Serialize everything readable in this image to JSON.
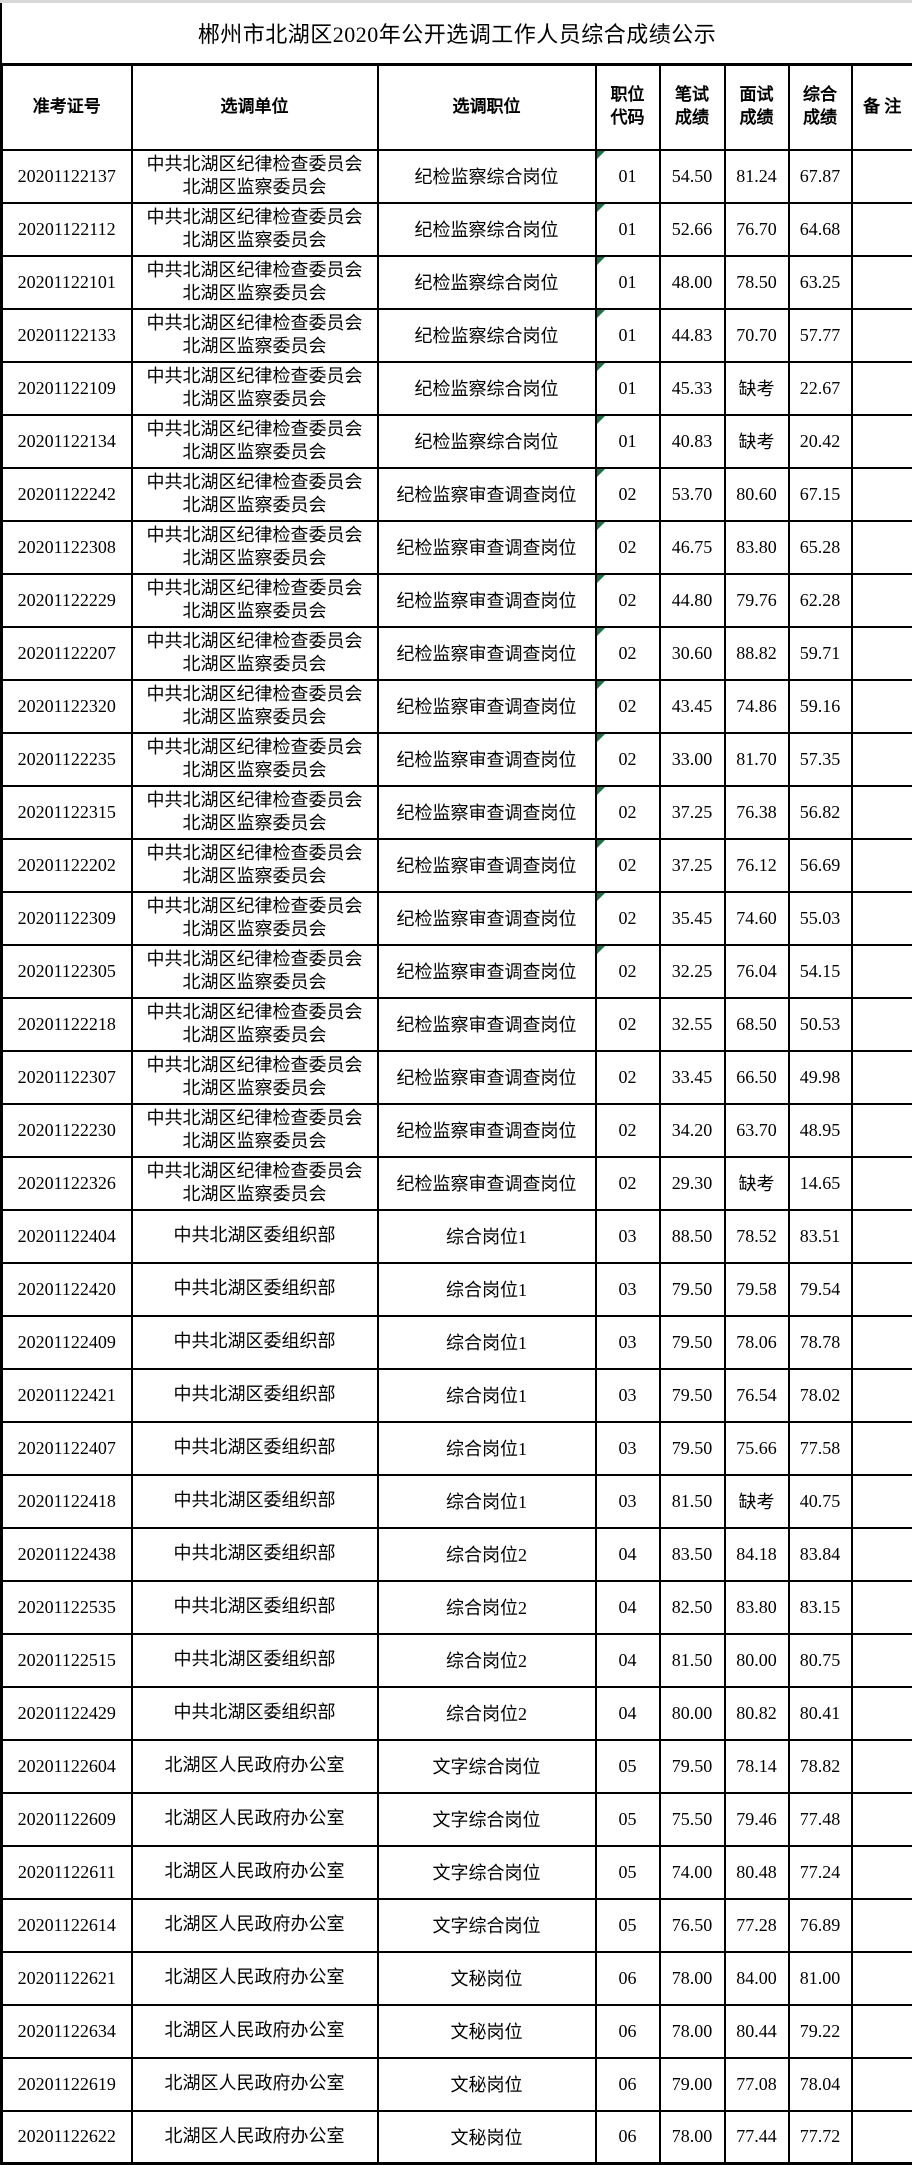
{
  "page": {
    "title": "郴州市北湖区2020年公开选调工作人员综合成绩公示"
  },
  "colors": {
    "marker_green": "#1e7145",
    "border": "#000000",
    "background": "#ffffff",
    "top_strip": "#d8d8d8"
  },
  "table": {
    "columns": [
      "准考证号",
      "选调单位",
      "选调职位",
      "职位\n代码",
      "笔试\n成绩",
      "面试\n成绩",
      "综合\n成绩",
      "备 注"
    ],
    "rows": [
      {
        "id": "20201122137",
        "unit": "中共北湖区纪律检查委员会\n北湖区监察委员会",
        "position": "纪检监察综合岗位",
        "code": "01",
        "written": "54.50",
        "interview": "81.24",
        "overall": "67.87",
        "note": "",
        "marker": true
      },
      {
        "id": "20201122112",
        "unit": "中共北湖区纪律检查委员会\n北湖区监察委员会",
        "position": "纪检监察综合岗位",
        "code": "01",
        "written": "52.66",
        "interview": "76.70",
        "overall": "64.68",
        "note": "",
        "marker": true
      },
      {
        "id": "20201122101",
        "unit": "中共北湖区纪律检查委员会\n北湖区监察委员会",
        "position": "纪检监察综合岗位",
        "code": "01",
        "written": "48.00",
        "interview": "78.50",
        "overall": "63.25",
        "note": "",
        "marker": true
      },
      {
        "id": "20201122133",
        "unit": "中共北湖区纪律检查委员会\n北湖区监察委员会",
        "position": "纪检监察综合岗位",
        "code": "01",
        "written": "44.83",
        "interview": "70.70",
        "overall": "57.77",
        "note": "",
        "marker": true
      },
      {
        "id": "20201122109",
        "unit": "中共北湖区纪律检查委员会\n北湖区监察委员会",
        "position": "纪检监察综合岗位",
        "code": "01",
        "written": "45.33",
        "interview": "缺考",
        "overall": "22.67",
        "note": "",
        "marker": true
      },
      {
        "id": "20201122134",
        "unit": "中共北湖区纪律检查委员会\n北湖区监察委员会",
        "position": "纪检监察综合岗位",
        "code": "01",
        "written": "40.83",
        "interview": "缺考",
        "overall": "20.42",
        "note": "",
        "marker": true
      },
      {
        "id": "20201122242",
        "unit": "中共北湖区纪律检查委员会\n北湖区监察委员会",
        "position": "纪检监察审查调查岗位",
        "code": "02",
        "written": "53.70",
        "interview": "80.60",
        "overall": "67.15",
        "note": "",
        "marker": true
      },
      {
        "id": "20201122308",
        "unit": "中共北湖区纪律检查委员会\n北湖区监察委员会",
        "position": "纪检监察审查调查岗位",
        "code": "02",
        "written": "46.75",
        "interview": "83.80",
        "overall": "65.28",
        "note": "",
        "marker": true
      },
      {
        "id": "20201122229",
        "unit": "中共北湖区纪律检查委员会\n北湖区监察委员会",
        "position": "纪检监察审查调查岗位",
        "code": "02",
        "written": "44.80",
        "interview": "79.76",
        "overall": "62.28",
        "note": "",
        "marker": true
      },
      {
        "id": "20201122207",
        "unit": "中共北湖区纪律检查委员会\n北湖区监察委员会",
        "position": "纪检监察审查调查岗位",
        "code": "02",
        "written": "30.60",
        "interview": "88.82",
        "overall": "59.71",
        "note": "",
        "marker": true
      },
      {
        "id": "20201122320",
        "unit": "中共北湖区纪律检查委员会\n北湖区监察委员会",
        "position": "纪检监察审查调查岗位",
        "code": "02",
        "written": "43.45",
        "interview": "74.86",
        "overall": "59.16",
        "note": "",
        "marker": true
      },
      {
        "id": "20201122235",
        "unit": "中共北湖区纪律检查委员会\n北湖区监察委员会",
        "position": "纪检监察审查调查岗位",
        "code": "02",
        "written": "33.00",
        "interview": "81.70",
        "overall": "57.35",
        "note": "",
        "marker": true
      },
      {
        "id": "20201122315",
        "unit": "中共北湖区纪律检查委员会\n北湖区监察委员会",
        "position": "纪检监察审查调查岗位",
        "code": "02",
        "written": "37.25",
        "interview": "76.38",
        "overall": "56.82",
        "note": "",
        "marker": true
      },
      {
        "id": "20201122202",
        "unit": "中共北湖区纪律检查委员会\n北湖区监察委员会",
        "position": "纪检监察审查调查岗位",
        "code": "02",
        "written": "37.25",
        "interview": "76.12",
        "overall": "56.69",
        "note": "",
        "marker": true
      },
      {
        "id": "20201122309",
        "unit": "中共北湖区纪律检查委员会\n北湖区监察委员会",
        "position": "纪检监察审查调查岗位",
        "code": "02",
        "written": "35.45",
        "interview": "74.60",
        "overall": "55.03",
        "note": "",
        "marker": true
      },
      {
        "id": "20201122305",
        "unit": "中共北湖区纪律检查委员会\n北湖区监察委员会",
        "position": "纪检监察审查调查岗位",
        "code": "02",
        "written": "32.25",
        "interview": "76.04",
        "overall": "54.15",
        "note": "",
        "marker": true
      },
      {
        "id": "20201122218",
        "unit": "中共北湖区纪律检查委员会\n北湖区监察委员会",
        "position": "纪检监察审查调查岗位",
        "code": "02",
        "written": "32.55",
        "interview": "68.50",
        "overall": "50.53",
        "note": "",
        "marker": false
      },
      {
        "id": "20201122307",
        "unit": "中共北湖区纪律检查委员会\n北湖区监察委员会",
        "position": "纪检监察审查调查岗位",
        "code": "02",
        "written": "33.45",
        "interview": "66.50",
        "overall": "49.98",
        "note": "",
        "marker": false
      },
      {
        "id": "20201122230",
        "unit": "中共北湖区纪律检查委员会\n北湖区监察委员会",
        "position": "纪检监察审查调查岗位",
        "code": "02",
        "written": "34.20",
        "interview": "63.70",
        "overall": "48.95",
        "note": "",
        "marker": false
      },
      {
        "id": "20201122326",
        "unit": "中共北湖区纪律检查委员会\n北湖区监察委员会",
        "position": "纪检监察审查调查岗位",
        "code": "02",
        "written": "29.30",
        "interview": "缺考",
        "overall": "14.65",
        "note": "",
        "marker": false
      },
      {
        "id": "20201122404",
        "unit": "中共北湖区委组织部",
        "position": "综合岗位1",
        "code": "03",
        "written": "88.50",
        "interview": "78.52",
        "overall": "83.51",
        "note": "",
        "marker": false
      },
      {
        "id": "20201122420",
        "unit": "中共北湖区委组织部",
        "position": "综合岗位1",
        "code": "03",
        "written": "79.50",
        "interview": "79.58",
        "overall": "79.54",
        "note": "",
        "marker": false
      },
      {
        "id": "20201122409",
        "unit": "中共北湖区委组织部",
        "position": "综合岗位1",
        "code": "03",
        "written": "79.50",
        "interview": "78.06",
        "overall": "78.78",
        "note": "",
        "marker": false
      },
      {
        "id": "20201122421",
        "unit": "中共北湖区委组织部",
        "position": "综合岗位1",
        "code": "03",
        "written": "79.50",
        "interview": "76.54",
        "overall": "78.02",
        "note": "",
        "marker": false
      },
      {
        "id": "20201122407",
        "unit": "中共北湖区委组织部",
        "position": "综合岗位1",
        "code": "03",
        "written": "79.50",
        "interview": "75.66",
        "overall": "77.58",
        "note": "",
        "marker": false
      },
      {
        "id": "20201122418",
        "unit": "中共北湖区委组织部",
        "position": "综合岗位1",
        "code": "03",
        "written": "81.50",
        "interview": "缺考",
        "overall": "40.75",
        "note": "",
        "marker": false
      },
      {
        "id": "20201122438",
        "unit": "中共北湖区委组织部",
        "position": "综合岗位2",
        "code": "04",
        "written": "83.50",
        "interview": "84.18",
        "overall": "83.84",
        "note": "",
        "marker": false
      },
      {
        "id": "20201122535",
        "unit": "中共北湖区委组织部",
        "position": "综合岗位2",
        "code": "04",
        "written": "82.50",
        "interview": "83.80",
        "overall": "83.15",
        "note": "",
        "marker": false
      },
      {
        "id": "20201122515",
        "unit": "中共北湖区委组织部",
        "position": "综合岗位2",
        "code": "04",
        "written": "81.50",
        "interview": "80.00",
        "overall": "80.75",
        "note": "",
        "marker": false
      },
      {
        "id": "20201122429",
        "unit": "中共北湖区委组织部",
        "position": "综合岗位2",
        "code": "04",
        "written": "80.00",
        "interview": "80.82",
        "overall": "80.41",
        "note": "",
        "marker": false
      },
      {
        "id": "20201122604",
        "unit": "北湖区人民政府办公室",
        "position": "文字综合岗位",
        "code": "05",
        "written": "79.50",
        "interview": "78.14",
        "overall": "78.82",
        "note": "",
        "marker": false
      },
      {
        "id": "20201122609",
        "unit": "北湖区人民政府办公室",
        "position": "文字综合岗位",
        "code": "05",
        "written": "75.50",
        "interview": "79.46",
        "overall": "77.48",
        "note": "",
        "marker": false
      },
      {
        "id": "20201122611",
        "unit": "北湖区人民政府办公室",
        "position": "文字综合岗位",
        "code": "05",
        "written": "74.00",
        "interview": "80.48",
        "overall": "77.24",
        "note": "",
        "marker": false
      },
      {
        "id": "20201122614",
        "unit": "北湖区人民政府办公室",
        "position": "文字综合岗位",
        "code": "05",
        "written": "76.50",
        "interview": "77.28",
        "overall": "76.89",
        "note": "",
        "marker": false
      },
      {
        "id": "20201122621",
        "unit": "北湖区人民政府办公室",
        "position": "文秘岗位",
        "code": "06",
        "written": "78.00",
        "interview": "84.00",
        "overall": "81.00",
        "note": "",
        "marker": false
      },
      {
        "id": "20201122634",
        "unit": "北湖区人民政府办公室",
        "position": "文秘岗位",
        "code": "06",
        "written": "78.00",
        "interview": "80.44",
        "overall": "79.22",
        "note": "",
        "marker": false
      },
      {
        "id": "20201122619",
        "unit": "北湖区人民政府办公室",
        "position": "文秘岗位",
        "code": "06",
        "written": "79.00",
        "interview": "77.08",
        "overall": "78.04",
        "note": "",
        "marker": false
      },
      {
        "id": "20201122622",
        "unit": "北湖区人民政府办公室",
        "position": "文秘岗位",
        "code": "06",
        "written": "78.00",
        "interview": "77.44",
        "overall": "77.72",
        "note": "",
        "marker": false
      }
    ]
  }
}
